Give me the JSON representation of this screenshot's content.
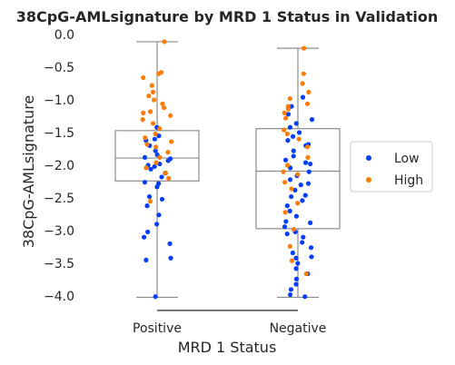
{
  "chart_data": {
    "type": "box-strip",
    "title": "38CpG-AMLsignature by MRD 1 Status in Validation",
    "xlabel": "MRD 1 Status",
    "ylabel": "38CpG-AMLsignature",
    "categories": [
      "Positive",
      "Negative"
    ],
    "ylim": [
      -4.2,
      0.1
    ],
    "yticks": [
      0.0,
      -0.5,
      -1.0,
      -1.5,
      -2.0,
      -2.5,
      -3.0,
      -3.5,
      -4.0
    ],
    "ytick_labels": [
      "0.0",
      "−0.5",
      "−1.0",
      "−1.5",
      "−2.0",
      "−2.5",
      "−3.0",
      "−3.5",
      "−4.0"
    ],
    "grid": false,
    "legend": {
      "placement": "right",
      "entries": [
        {
          "label": "Low",
          "color": "#023eff"
        },
        {
          "label": "High",
          "color": "#ff7c00"
        }
      ]
    },
    "boxes": [
      {
        "category": "Positive",
        "q1": -2.24,
        "median": -1.89,
        "q3": -1.47,
        "whisker_low": -4.02,
        "whisker_high": -0.11
      },
      {
        "category": "Negative",
        "q1": -2.97,
        "median": -2.09,
        "q3": -1.44,
        "whisker_low": -4.02,
        "whisker_high": -0.21
      }
    ],
    "significance_bracket": {
      "from": "Positive",
      "to": "Negative",
      "y": -4.22
    },
    "series": [
      {
        "name": "Low",
        "color": "#023eff",
        "points": [
          {
            "x": "Positive",
            "y": -1.42
          },
          {
            "x": "Positive",
            "y": -1.55
          },
          {
            "x": "Positive",
            "y": -1.62
          },
          {
            "x": "Positive",
            "y": -1.7
          },
          {
            "x": "Positive",
            "y": -1.78
          },
          {
            "x": "Positive",
            "y": -1.84
          },
          {
            "x": "Positive",
            "y": -1.88
          },
          {
            "x": "Positive",
            "y": -1.93
          },
          {
            "x": "Positive",
            "y": -1.98
          },
          {
            "x": "Positive",
            "y": -2.02
          },
          {
            "x": "Positive",
            "y": -2.06
          },
          {
            "x": "Positive",
            "y": -2.12
          },
          {
            "x": "Positive",
            "y": -2.18
          },
          {
            "x": "Positive",
            "y": -2.26
          },
          {
            "x": "Positive",
            "y": -2.33
          },
          {
            "x": "Positive",
            "y": -2.48
          },
          {
            "x": "Positive",
            "y": -2.52
          },
          {
            "x": "Positive",
            "y": -2.62
          },
          {
            "x": "Positive",
            "y": -2.76
          },
          {
            "x": "Positive",
            "y": -2.9
          },
          {
            "x": "Positive",
            "y": -3.02
          },
          {
            "x": "Positive",
            "y": -3.1
          },
          {
            "x": "Positive",
            "y": -3.2
          },
          {
            "x": "Positive",
            "y": -3.42
          },
          {
            "x": "Positive",
            "y": -3.45
          },
          {
            "x": "Positive",
            "y": -4.01
          },
          {
            "x": "Positive",
            "y": -1.9
          },
          {
            "x": "Positive",
            "y": -2.0
          },
          {
            "x": "Positive",
            "y": -1.6
          },
          {
            "x": "Positive",
            "y": -2.28
          },
          {
            "x": "Negative",
            "y": -0.96
          },
          {
            "x": "Negative",
            "y": -1.1
          },
          {
            "x": "Negative",
            "y": -1.22
          },
          {
            "x": "Negative",
            "y": -1.3
          },
          {
            "x": "Negative",
            "y": -1.36
          },
          {
            "x": "Negative",
            "y": -1.42
          },
          {
            "x": "Negative",
            "y": -1.5
          },
          {
            "x": "Negative",
            "y": -1.56
          },
          {
            "x": "Negative",
            "y": -1.62
          },
          {
            "x": "Negative",
            "y": -1.7
          },
          {
            "x": "Negative",
            "y": -1.78
          },
          {
            "x": "Negative",
            "y": -1.86
          },
          {
            "x": "Negative",
            "y": -1.92
          },
          {
            "x": "Negative",
            "y": -1.98
          },
          {
            "x": "Negative",
            "y": -2.04
          },
          {
            "x": "Negative",
            "y": -2.1
          },
          {
            "x": "Negative",
            "y": -2.16
          },
          {
            "x": "Negative",
            "y": -2.22
          },
          {
            "x": "Negative",
            "y": -2.3
          },
          {
            "x": "Negative",
            "y": -2.38
          },
          {
            "x": "Negative",
            "y": -2.46
          },
          {
            "x": "Negative",
            "y": -2.54
          },
          {
            "x": "Negative",
            "y": -2.62
          },
          {
            "x": "Negative",
            "y": -2.7
          },
          {
            "x": "Negative",
            "y": -2.78
          },
          {
            "x": "Negative",
            "y": -2.86
          },
          {
            "x": "Negative",
            "y": -2.94
          },
          {
            "x": "Negative",
            "y": -3.02
          },
          {
            "x": "Negative",
            "y": -3.1
          },
          {
            "x": "Negative",
            "y": -3.18
          },
          {
            "x": "Negative",
            "y": -3.26
          },
          {
            "x": "Negative",
            "y": -3.34
          },
          {
            "x": "Negative",
            "y": -3.42
          },
          {
            "x": "Negative",
            "y": -3.5
          },
          {
            "x": "Negative",
            "y": -3.58
          },
          {
            "x": "Negative",
            "y": -3.66
          },
          {
            "x": "Negative",
            "y": -3.74
          },
          {
            "x": "Negative",
            "y": -3.82
          },
          {
            "x": "Negative",
            "y": -3.9
          },
          {
            "x": "Negative",
            "y": -3.98
          },
          {
            "x": "Negative",
            "y": -4.01
          },
          {
            "x": "Negative",
            "y": -3.05
          },
          {
            "x": "Negative",
            "y": -2.48
          },
          {
            "x": "Negative",
            "y": -1.96
          },
          {
            "x": "Negative",
            "y": -2.28
          },
          {
            "x": "Negative",
            "y": -3.4
          },
          {
            "x": "Negative",
            "y": -2.88
          },
          {
            "x": "Negative",
            "y": -1.68
          }
        ]
      },
      {
        "name": "High",
        "color": "#ff7c00",
        "points": [
          {
            "x": "Positive",
            "y": -0.11
          },
          {
            "x": "Positive",
            "y": -0.58
          },
          {
            "x": "Positive",
            "y": -0.6
          },
          {
            "x": "Positive",
            "y": -0.66
          },
          {
            "x": "Positive",
            "y": -0.78
          },
          {
            "x": "Positive",
            "y": -0.88
          },
          {
            "x": "Positive",
            "y": -0.94
          },
          {
            "x": "Positive",
            "y": -1.0
          },
          {
            "x": "Positive",
            "y": -1.06
          },
          {
            "x": "Positive",
            "y": -1.12
          },
          {
            "x": "Positive",
            "y": -1.18
          },
          {
            "x": "Positive",
            "y": -1.24
          },
          {
            "x": "Positive",
            "y": -1.3
          },
          {
            "x": "Positive",
            "y": -1.36
          },
          {
            "x": "Positive",
            "y": -1.44
          },
          {
            "x": "Positive",
            "y": -1.52
          },
          {
            "x": "Positive",
            "y": -1.58
          },
          {
            "x": "Positive",
            "y": -1.64
          },
          {
            "x": "Positive",
            "y": -1.72
          },
          {
            "x": "Positive",
            "y": -1.8
          },
          {
            "x": "Positive",
            "y": -1.88
          },
          {
            "x": "Positive",
            "y": -1.96
          },
          {
            "x": "Positive",
            "y": -2.04
          },
          {
            "x": "Positive",
            "y": -2.12
          },
          {
            "x": "Positive",
            "y": -2.2
          },
          {
            "x": "Positive",
            "y": -2.55
          },
          {
            "x": "Positive",
            "y": -1.2
          },
          {
            "x": "Positive",
            "y": -1.68
          },
          {
            "x": "Negative",
            "y": -0.21
          },
          {
            "x": "Negative",
            "y": -0.6
          },
          {
            "x": "Negative",
            "y": -0.75
          },
          {
            "x": "Negative",
            "y": -0.88
          },
          {
            "x": "Negative",
            "y": -0.98
          },
          {
            "x": "Negative",
            "y": -1.06
          },
          {
            "x": "Negative",
            "y": -1.14
          },
          {
            "x": "Negative",
            "y": -1.2
          },
          {
            "x": "Negative",
            "y": -1.28
          },
          {
            "x": "Negative",
            "y": -1.46
          },
          {
            "x": "Negative",
            "y": -1.6
          },
          {
            "x": "Negative",
            "y": -1.72
          },
          {
            "x": "Negative",
            "y": -1.88
          },
          {
            "x": "Negative",
            "y": -2.0
          },
          {
            "x": "Negative",
            "y": -2.14
          },
          {
            "x": "Negative",
            "y": -2.26
          },
          {
            "x": "Negative",
            "y": -2.36
          },
          {
            "x": "Negative",
            "y": -2.58
          },
          {
            "x": "Negative",
            "y": -2.72
          },
          {
            "x": "Negative",
            "y": -2.98
          },
          {
            "x": "Negative",
            "y": -3.24
          },
          {
            "x": "Negative",
            "y": -3.46
          },
          {
            "x": "Negative",
            "y": -3.66
          },
          {
            "x": "Negative",
            "y": -1.52
          },
          {
            "x": "Negative",
            "y": -1.1
          },
          {
            "x": "Negative",
            "y": -2.1
          }
        ]
      }
    ]
  }
}
